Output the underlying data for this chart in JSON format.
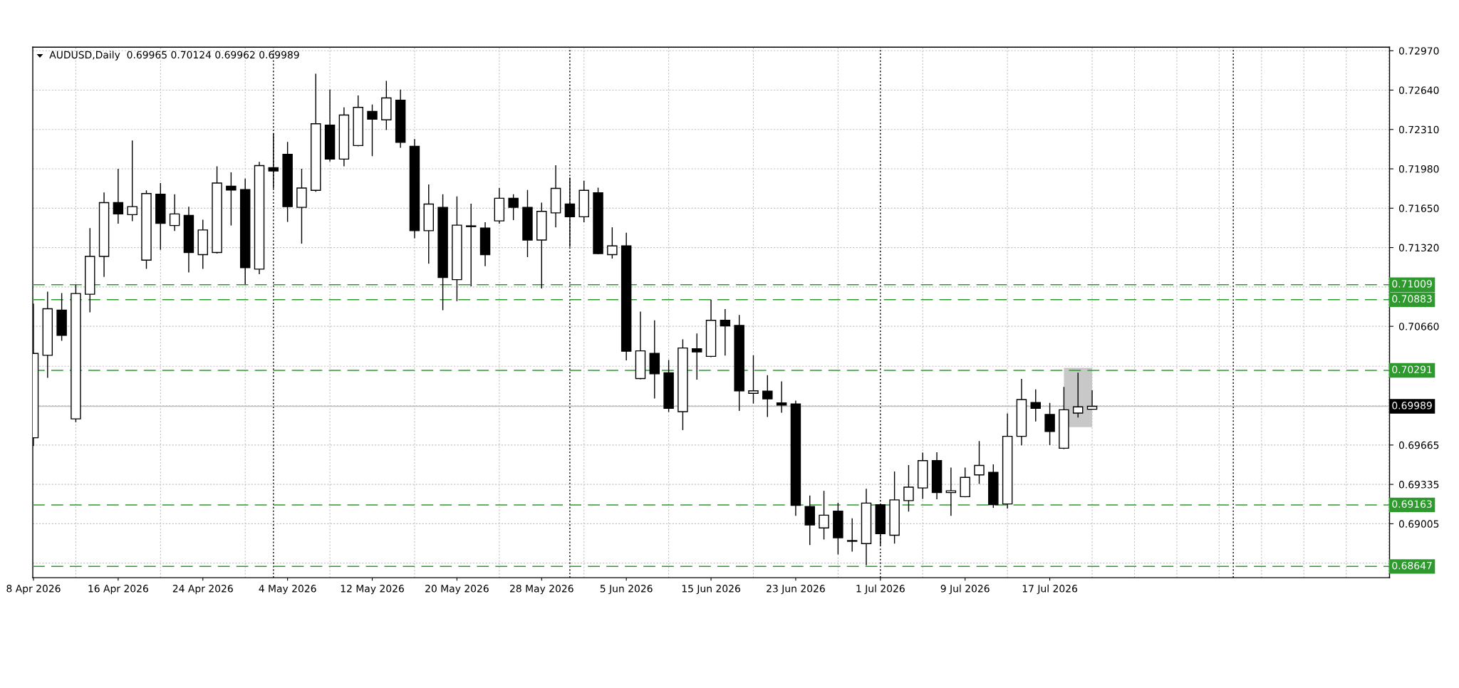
{
  "chart_data": {
    "type": "candlestick",
    "title": "AUDUSD,Daily  0.69965 0.70124 0.69962 0.69989",
    "categories": [
      "8 Apr 2026",
      null,
      null,
      null,
      null,
      null,
      "16 Apr 2026",
      null,
      null,
      null,
      null,
      null,
      "24 Apr 2026",
      null,
      null,
      null,
      null,
      null,
      "4 May 2026",
      null,
      null,
      null,
      null,
      null,
      "12 May 2026",
      null,
      null,
      null,
      null,
      null,
      "20 May 2026",
      null,
      null,
      null,
      null,
      null,
      "28 May 2026",
      null,
      null,
      null,
      null,
      null,
      "5 Jun 2026",
      null,
      null,
      null,
      null,
      null,
      "15 Jun 2026",
      null,
      null,
      null,
      null,
      null,
      "23 Jun 2026",
      null,
      null,
      null,
      null,
      null,
      "1 Jul 2026",
      null,
      null,
      null,
      null,
      null,
      "9 Jul 2026",
      null,
      null,
      null,
      null,
      null,
      "17 Jul 2026",
      null,
      null,
      null,
      null,
      null,
      null,
      null,
      null,
      null,
      null,
      null,
      null,
      null,
      null,
      null,
      null,
      null,
      null,
      null,
      null,
      null,
      null,
      null,
      null
    ],
    "ohlc": [
      [
        0.69726,
        0.7085,
        0.69656,
        0.70433
      ],
      [
        0.70417,
        0.7095,
        0.70228,
        0.70807
      ],
      [
        0.70795,
        0.70938,
        0.70539,
        0.70585
      ],
      [
        0.69884,
        0.71008,
        0.69857,
        0.70935
      ],
      [
        0.70929,
        0.71484,
        0.70777,
        0.71246
      ],
      [
        0.71246,
        0.71782,
        0.71075,
        0.71697
      ],
      [
        0.71697,
        0.7198,
        0.7152,
        0.71602
      ],
      [
        0.71596,
        0.72218,
        0.71541,
        0.71663
      ],
      [
        0.71215,
        0.718,
        0.71142,
        0.71773
      ],
      [
        0.71767,
        0.71861,
        0.71301,
        0.71523
      ],
      [
        0.71505,
        0.71767,
        0.71459,
        0.71602
      ],
      [
        0.7159,
        0.71663,
        0.71112,
        0.71279
      ],
      [
        0.71261,
        0.71554,
        0.71142,
        0.71468
      ],
      [
        0.71279,
        0.72001,
        0.7127,
        0.71861
      ],
      [
        0.71834,
        0.7195,
        0.71505,
        0.71803
      ],
      [
        0.71806,
        0.71898,
        0.71011,
        0.71151
      ],
      [
        0.71139,
        0.72038,
        0.71097,
        0.72007
      ],
      [
        0.71989,
        0.72279,
        0.71816,
        0.71962
      ],
      [
        0.72102,
        0.72205,
        0.71535,
        0.71663
      ],
      [
        0.71657,
        0.7198,
        0.71353,
        0.71819
      ],
      [
        0.718,
        0.72778,
        0.71788,
        0.72358
      ],
      [
        0.72346,
        0.72644,
        0.72041,
        0.72062
      ],
      [
        0.72062,
        0.72495,
        0.72001,
        0.72431
      ],
      [
        0.72175,
        0.72595,
        0.72169,
        0.72495
      ],
      [
        0.72461,
        0.72519,
        0.72087,
        0.72397
      ],
      [
        0.72391,
        0.72717,
        0.72306,
        0.72574
      ],
      [
        0.72556,
        0.72644,
        0.72157,
        0.72202
      ],
      [
        0.72169,
        0.7223,
        0.71398,
        0.71462
      ],
      [
        0.71462,
        0.71849,
        0.71185,
        0.71685
      ],
      [
        0.71657,
        0.71767,
        0.70795,
        0.71069
      ],
      [
        0.71051,
        0.71749,
        0.70871,
        0.71508
      ],
      [
        0.71502,
        0.71688,
        0.70996,
        0.71496
      ],
      [
        0.71484,
        0.71532,
        0.71164,
        0.71261
      ],
      [
        0.71544,
        0.71819,
        0.7152,
        0.71733
      ],
      [
        0.71733,
        0.71767,
        0.7155,
        0.71657
      ],
      [
        0.71657,
        0.71803,
        0.7124,
        0.71383
      ],
      [
        0.71383,
        0.71697,
        0.70978,
        0.71624
      ],
      [
        0.71611,
        0.7201,
        0.7149,
        0.71816
      ],
      [
        0.71685,
        0.71907,
        0.71325,
        0.71578
      ],
      [
        0.71578,
        0.7188,
        0.71532,
        0.718
      ],
      [
        0.71779,
        0.71822,
        0.71264,
        0.7127
      ],
      [
        0.71261,
        0.7149,
        0.71228,
        0.71334
      ],
      [
        0.71334,
        0.71444,
        0.70375,
        0.70451
      ],
      [
        0.70222,
        0.70783,
        0.70216,
        0.70454
      ],
      [
        0.70433,
        0.7071,
        0.70055,
        0.70262
      ],
      [
        0.70271,
        0.70378,
        0.69942,
        0.69973
      ],
      [
        0.69945,
        0.70551,
        0.6979,
        0.70478
      ],
      [
        0.70472,
        0.706,
        0.70213,
        0.70445
      ],
      [
        0.70408,
        0.70883,
        0.70402,
        0.7071
      ],
      [
        0.7071,
        0.70804,
        0.70414,
        0.70664
      ],
      [
        0.70667,
        0.70755,
        0.69951,
        0.70119
      ],
      [
        0.70098,
        0.70417,
        0.70012,
        0.70119
      ],
      [
        0.70116,
        0.7025,
        0.699,
        0.70052
      ],
      [
        0.70018,
        0.70198,
        0.69936,
        0.7
      ],
      [
        0.70009,
        0.70037,
        0.69071,
        0.69159
      ],
      [
        0.6915,
        0.69242,
        0.68827,
        0.68995
      ],
      [
        0.6897,
        0.69281,
        0.68873,
        0.69077
      ],
      [
        0.69111,
        0.69181,
        0.68748,
        0.68888
      ],
      [
        0.68864,
        0.6905,
        0.68772,
        0.68858
      ],
      [
        0.68839,
        0.69299,
        0.68657,
        0.69178
      ],
      [
        0.69165,
        0.69175,
        0.68824,
        0.68922
      ],
      [
        0.68909,
        0.69443,
        0.68839,
        0.69205
      ],
      [
        0.69199,
        0.69497,
        0.69107,
        0.69312
      ],
      [
        0.69305,
        0.69601,
        0.69214,
        0.69534
      ],
      [
        0.69534,
        0.69604,
        0.69211,
        0.69266
      ],
      [
        0.69266,
        0.69476,
        0.69071,
        0.69281
      ],
      [
        0.69232,
        0.69476,
        0.69226,
        0.69394
      ],
      [
        0.69415,
        0.69698,
        0.69339,
        0.69494
      ],
      [
        0.69436,
        0.69503,
        0.69138,
        0.69165
      ],
      [
        0.69171,
        0.6993,
        0.69132,
        0.69738
      ],
      [
        0.69738,
        0.70219,
        0.69662,
        0.70046
      ],
      [
        0.70021,
        0.70131,
        0.69863,
        0.69973
      ],
      [
        0.69921,
        0.70018,
        0.69665,
        0.69778
      ],
      [
        0.69638,
        0.70152,
        0.69631,
        0.6996
      ],
      [
        0.69933,
        0.70271,
        0.69896,
        0.69985
      ],
      [
        0.69965,
        0.70124,
        0.69962,
        0.69989
      ],
      null,
      null,
      null,
      null,
      null,
      null,
      null,
      null,
      null,
      null,
      null,
      null,
      null,
      null,
      null,
      null,
      null,
      null,
      null,
      null,
      null
    ],
    "ylim": [
      0.68553,
      0.73
    ],
    "yticks": [
      {
        "value": 0.7297,
        "label": "0.72970"
      },
      {
        "value": 0.7264,
        "label": "0.72640"
      },
      {
        "value": 0.7231,
        "label": "0.72310"
      },
      {
        "value": 0.7198,
        "label": "0.71980"
      },
      {
        "value": 0.7165,
        "label": "0.71650"
      },
      {
        "value": 0.7132,
        "label": "0.71320"
      },
      {
        "value": 0.7099,
        "label": null
      },
      {
        "value": 0.7066,
        "label": "0.70660"
      },
      {
        "value": 0.70325,
        "label": null
      },
      {
        "value": 0.69995,
        "label": null
      },
      {
        "value": 0.69665,
        "label": "0.69665"
      },
      {
        "value": 0.69335,
        "label": "0.69335"
      },
      {
        "value": 0.69005,
        "label": "0.69005"
      },
      {
        "value": 0.68675,
        "label": null
      }
    ],
    "grid": true,
    "ref_lines": [
      {
        "axis": "y",
        "value": 0.71009,
        "label": "0.71009",
        "color": "#2e9a2e",
        "line_style": "dashed"
      },
      {
        "axis": "y",
        "value": 0.70883,
        "label": "0.70883",
        "color": "#2e9a2e",
        "line_style": "dashed"
      },
      {
        "axis": "y",
        "value": 0.70291,
        "label": "0.70291",
        "color": "#2e9a2e",
        "line_style": "dashed"
      },
      {
        "axis": "y",
        "value": 0.69163,
        "label": "0.69163",
        "color": "#2e9a2e",
        "line_style": "dashed"
      },
      {
        "axis": "y",
        "value": 0.68647,
        "label": "0.68647",
        "color": "#2e9a2e",
        "line_style": "dashed"
      },
      {
        "axis": "y",
        "value": 0.69989,
        "label": "0.69989",
        "color": "#c0c0c0",
        "line_style": "solid"
      }
    ]
  }
}
